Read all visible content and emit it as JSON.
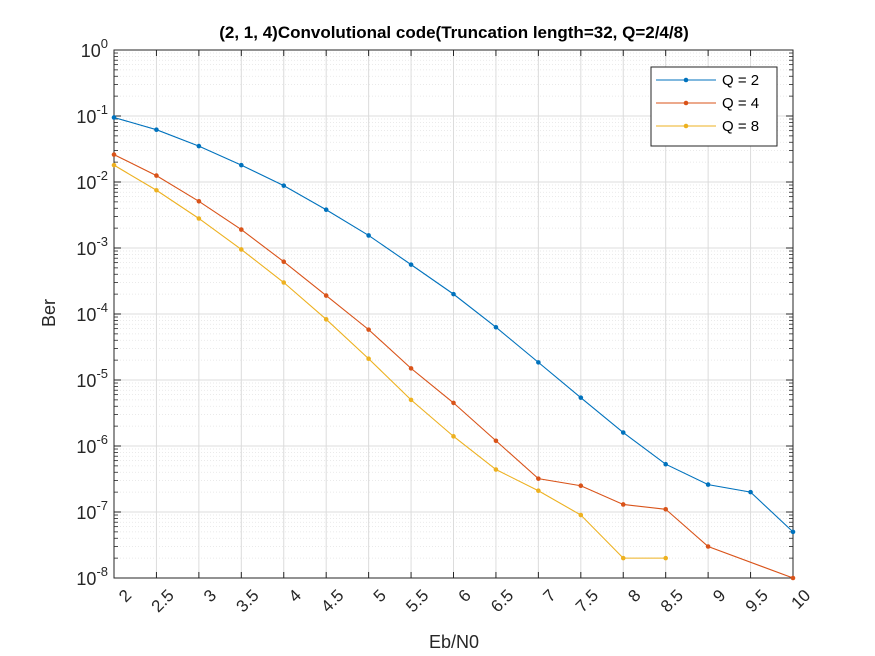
{
  "chart_data": {
    "type": "line",
    "title": "(2, 1, 4)Convolutional code(Truncation length=32, Q=2/4/8)",
    "xlabel": "Eb/N0",
    "ylabel": "Ber",
    "xlim": [
      2,
      10
    ],
    "ylim": [
      1e-08,
      1
    ],
    "yscale": "log",
    "grid": true,
    "minor_grid": true,
    "legend_position": "top-right",
    "x_ticks": [
      "2",
      "2.5",
      "3",
      "3.5",
      "4",
      "4.5",
      "5",
      "5.5",
      "6",
      "6.5",
      "7",
      "7.5",
      "8",
      "8.5",
      "9",
      "9.5",
      "10"
    ],
    "y_ticks": [
      {
        "base": "10",
        "exp": "0"
      },
      {
        "base": "10",
        "exp": "-1"
      },
      {
        "base": "10",
        "exp": "-2"
      },
      {
        "base": "10",
        "exp": "-3"
      },
      {
        "base": "10",
        "exp": "-4"
      },
      {
        "base": "10",
        "exp": "-5"
      },
      {
        "base": "10",
        "exp": "-6"
      },
      {
        "base": "10",
        "exp": "-7"
      },
      {
        "base": "10",
        "exp": "-8"
      }
    ],
    "series": [
      {
        "name": "Q = 2",
        "color": "#0072BD",
        "x": [
          2,
          2.5,
          3,
          3.5,
          4,
          4.5,
          5,
          5.5,
          6,
          6.5,
          7,
          7.5,
          8,
          8.5,
          9,
          9.5,
          10
        ],
        "y": [
          0.095,
          0.062,
          0.035,
          0.018,
          0.0088,
          0.0038,
          0.00155,
          0.00056,
          0.0002,
          6.3e-05,
          1.85e-05,
          5.4e-06,
          1.6e-06,
          5.3e-07,
          2.6e-07,
          2e-07,
          5e-08
        ]
      },
      {
        "name": "Q = 4",
        "color": "#D95319",
        "x": [
          2,
          2.5,
          3,
          3.5,
          4,
          4.5,
          5,
          5.5,
          6,
          6.5,
          7,
          7.5,
          8,
          8.5,
          9,
          10
        ],
        "y": [
          0.026,
          0.0125,
          0.0051,
          0.0019,
          0.00062,
          0.00019,
          5.8e-05,
          1.5e-05,
          4.5e-06,
          1.2e-06,
          3.2e-07,
          2.5e-07,
          1.3e-07,
          1.1e-07,
          3e-08,
          1e-08
        ]
      },
      {
        "name": "Q = 8",
        "color": "#EDB120",
        "x": [
          2,
          2.5,
          3,
          3.5,
          4,
          4.5,
          5,
          5.5,
          6,
          6.5,
          7,
          7.5,
          8,
          8.5
        ],
        "y": [
          0.018,
          0.0075,
          0.0028,
          0.00095,
          0.0003,
          8.3e-05,
          2.1e-05,
          5e-06,
          1.4e-06,
          4.4e-07,
          2.1e-07,
          9e-08,
          2e-08,
          2e-08
        ]
      }
    ]
  }
}
